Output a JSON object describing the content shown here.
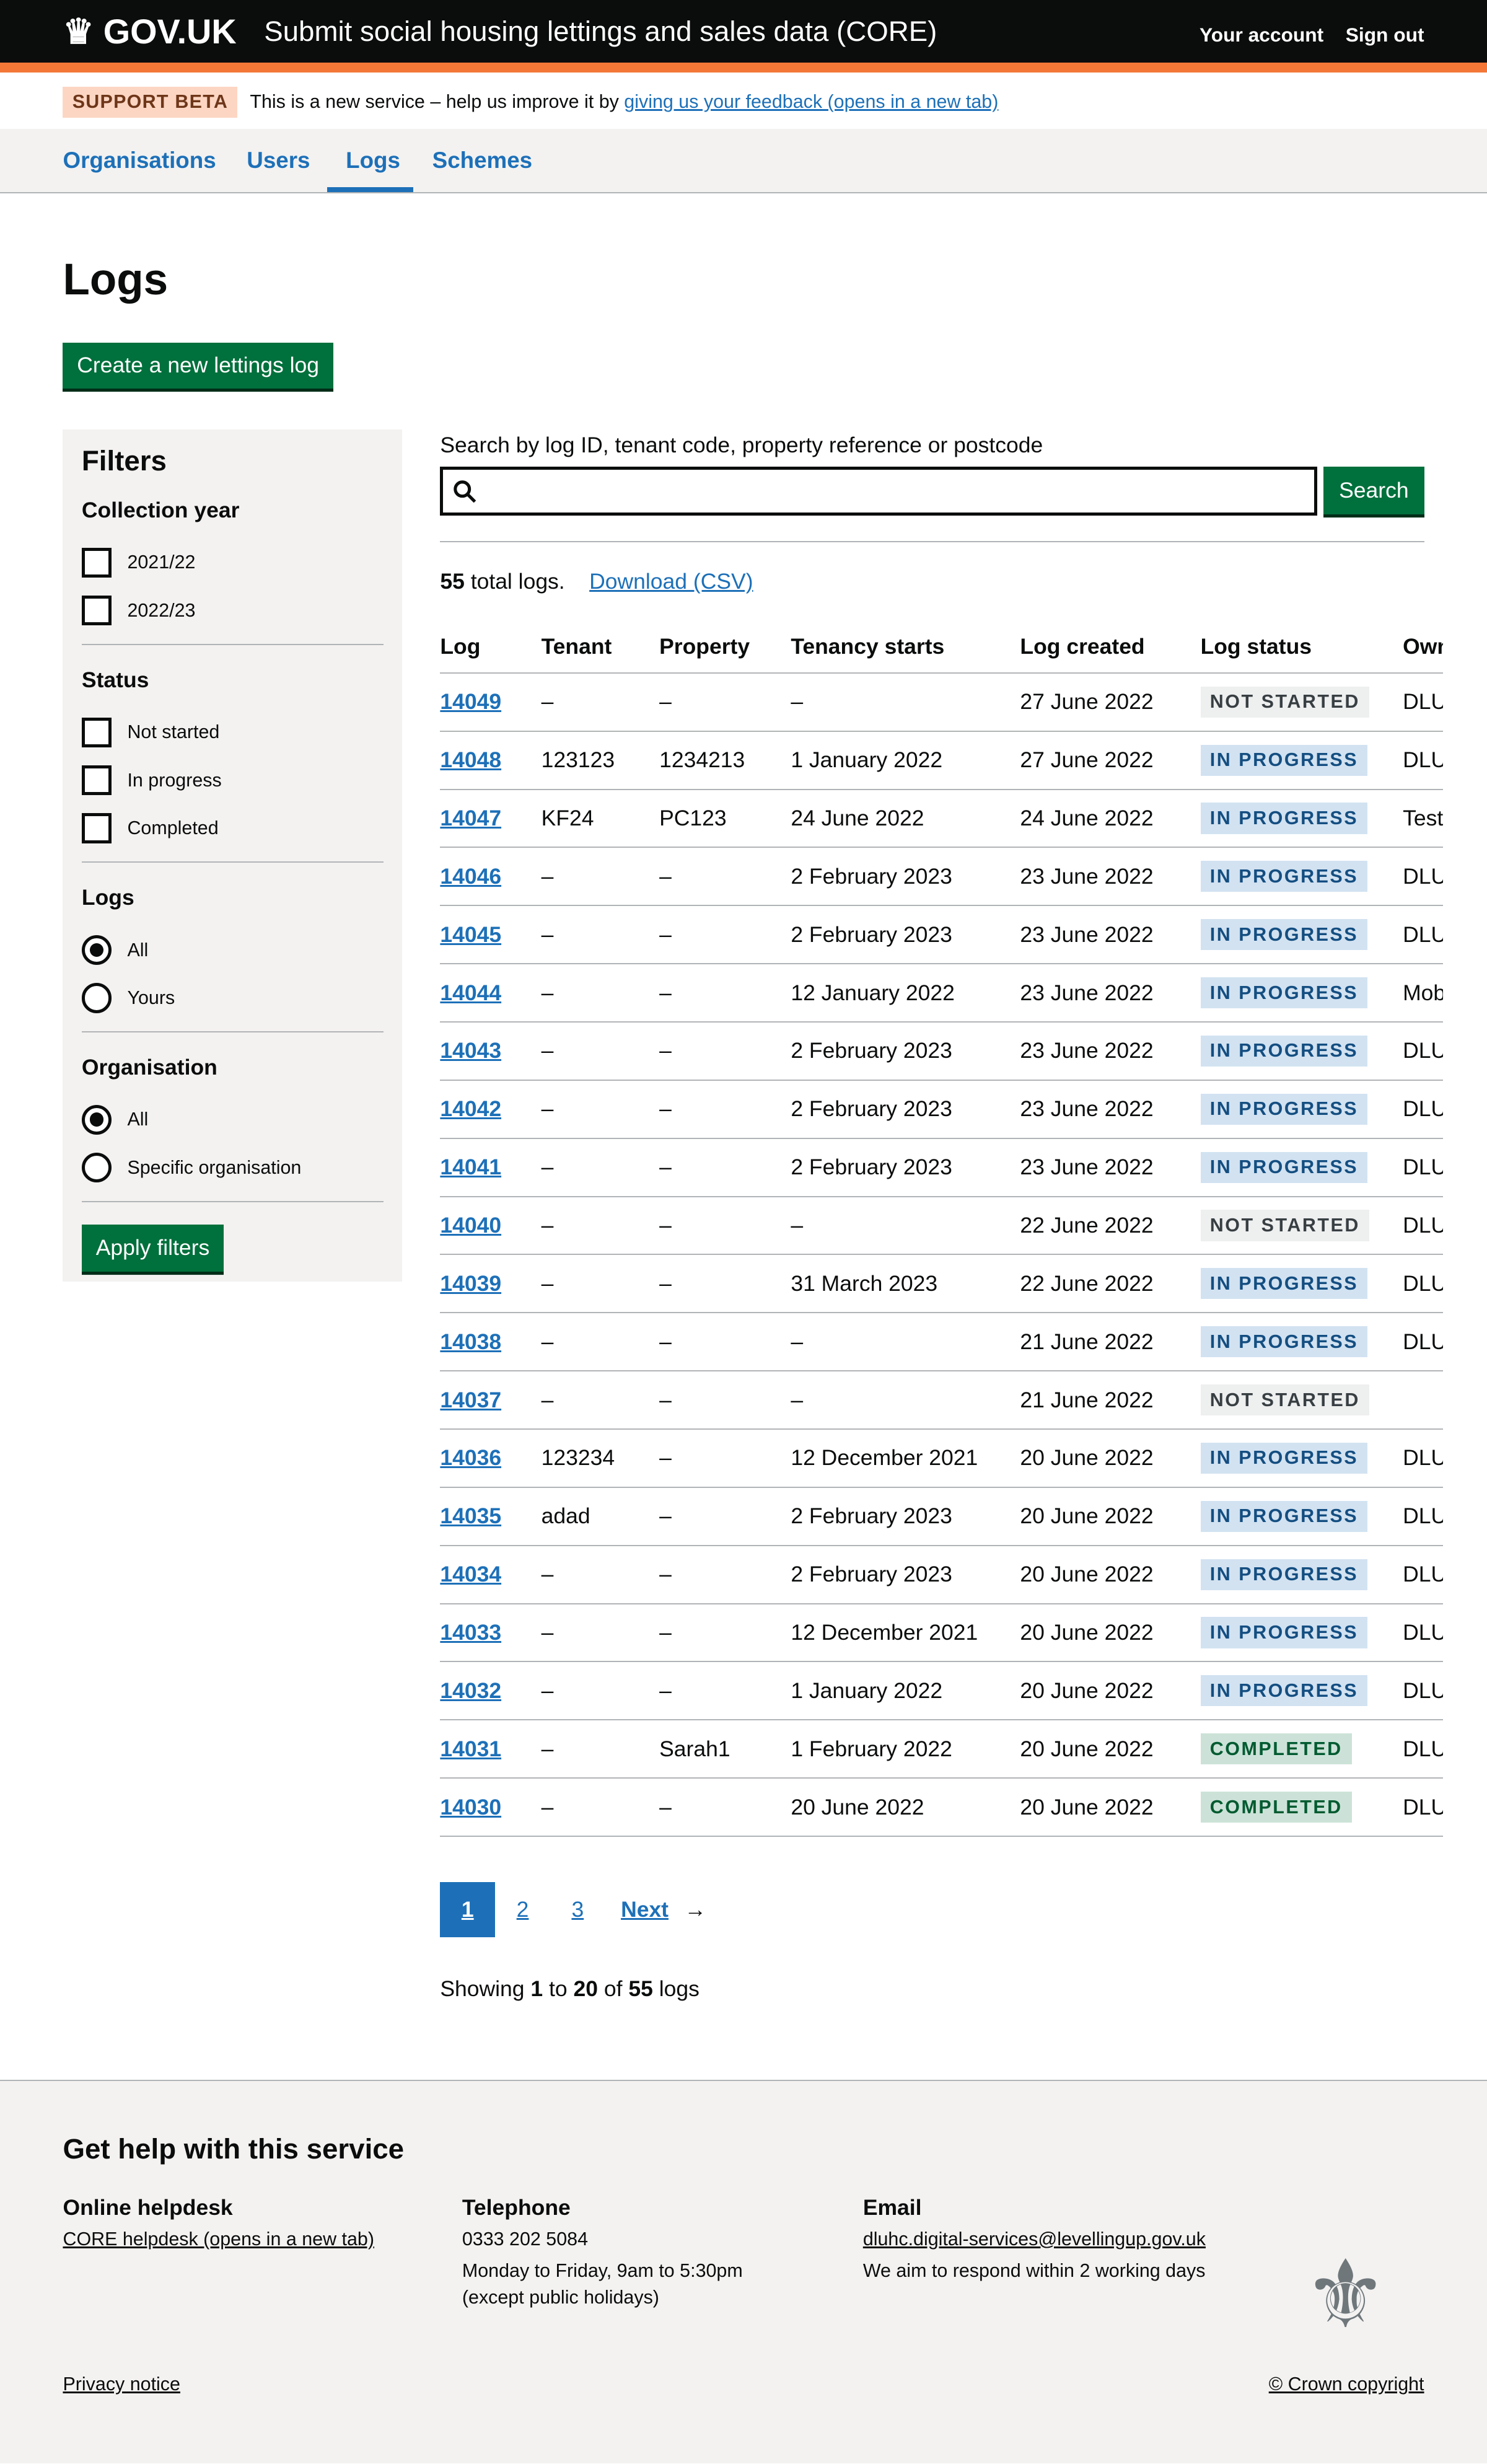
{
  "header": {
    "logo": "GOV.UK",
    "service": "Submit social housing lettings and sales data (CORE)",
    "links": [
      "Your account",
      "Sign out"
    ]
  },
  "phase": {
    "tag": "SUPPORT BETA",
    "text": "This is a new service – help us improve it by ",
    "link": "giving us your feedback (opens in a new tab)"
  },
  "nav": [
    "Organisations",
    "Users",
    "Logs",
    "Schemes"
  ],
  "nav_active": "Logs",
  "title": "Logs",
  "create_button": "Create a new lettings log",
  "filters": {
    "title": "Filters",
    "collection_year": {
      "label": "Collection year",
      "options": [
        "2021/22",
        "2022/23"
      ]
    },
    "status": {
      "label": "Status",
      "options": [
        "Not started",
        "In progress",
        "Completed"
      ]
    },
    "logs": {
      "label": "Logs",
      "options": [
        "All",
        "Yours"
      ],
      "selected": "All"
    },
    "organisation": {
      "label": "Organisation",
      "options": [
        "All",
        "Specific organisation"
      ],
      "selected": "All"
    },
    "apply": "Apply filters"
  },
  "search": {
    "label": "Search by log ID, tenant code, property reference or postcode",
    "value": "",
    "button": "Search"
  },
  "summary": {
    "count": "55",
    "text": " total logs.",
    "download": "Download (CSV)"
  },
  "table": {
    "headers": [
      "Log",
      "Tenant",
      "Property",
      "Tenancy starts",
      "Log created",
      "Log status",
      "Owning or"
    ],
    "rows": [
      [
        "14049",
        "–",
        "–",
        "–",
        "27 June 2022",
        "NOT STARTED",
        "DLUHC"
      ],
      [
        "14048",
        "123123",
        "1234213",
        "1 January 2022",
        "27 June 2022",
        "IN PROGRESS",
        "DLUHC"
      ],
      [
        "14047",
        "KF24",
        "PC123",
        "24 June 2022",
        "24 June 2022",
        "IN PROGRESS",
        "Test Organ"
      ],
      [
        "14046",
        "–",
        "–",
        "2 February 2023",
        "23 June 2022",
        "IN PROGRESS",
        "DLUHC Tes"
      ],
      [
        "14045",
        "–",
        "–",
        "2 February 2023",
        "23 June 2022",
        "IN PROGRESS",
        "DLUHC Tes"
      ],
      [
        "14044",
        "–",
        "–",
        "12 January 2022",
        "23 June 2022",
        "IN PROGRESS",
        "Mobile Hou"
      ],
      [
        "14043",
        "–",
        "–",
        "2 February 2023",
        "23 June 2022",
        "IN PROGRESS",
        "DLUHC Tes"
      ],
      [
        "14042",
        "–",
        "–",
        "2 February 2023",
        "23 June 2022",
        "IN PROGRESS",
        "DLUHC Tes"
      ],
      [
        "14041",
        "–",
        "–",
        "2 February 2023",
        "23 June 2022",
        "IN PROGRESS",
        "DLUHC"
      ],
      [
        "14040",
        "–",
        "–",
        "–",
        "22 June 2022",
        "NOT STARTED",
        "DLUHC"
      ],
      [
        "14039",
        "–",
        "–",
        "31 March 2023",
        "22 June 2022",
        "IN PROGRESS",
        "DLUHC Tes"
      ],
      [
        "14038",
        "–",
        "–",
        "–",
        "21 June 2022",
        "IN PROGRESS",
        "DLUHC"
      ],
      [
        "14037",
        "–",
        "–",
        "–",
        "21 June 2022",
        "NOT STARTED",
        ""
      ],
      [
        "14036",
        "123234",
        "–",
        "12 December 2021",
        "20 June 2022",
        "IN PROGRESS",
        "DLUHC Tes"
      ],
      [
        "14035",
        "adad",
        "–",
        "2 February 2023",
        "20 June 2022",
        "IN PROGRESS",
        "DLUHC Tes"
      ],
      [
        "14034",
        "–",
        "–",
        "2 February 2023",
        "20 June 2022",
        "IN PROGRESS",
        "DLUHC Tes"
      ],
      [
        "14033",
        "–",
        "–",
        "12 December 2021",
        "20 June 2022",
        "IN PROGRESS",
        "DLUHC Tes"
      ],
      [
        "14032",
        "–",
        "–",
        "1 January 2022",
        "20 June 2022",
        "IN PROGRESS",
        "DLUHC Tes"
      ],
      [
        "14031",
        "–",
        "Sarah1",
        "1 February 2022",
        "20 June 2022",
        "COMPLETED",
        "DLUHC Tes"
      ],
      [
        "14030",
        "–",
        "–",
        "20 June 2022",
        "20 June 2022",
        "COMPLETED",
        "DLUHC Tes"
      ]
    ]
  },
  "pagination": {
    "pages": [
      "1",
      "2",
      "3"
    ],
    "current": "1",
    "next": "Next"
  },
  "showing": {
    "prefix": "Showing ",
    "from": "1",
    "to_word": " to ",
    "to": "20",
    "of_word": " of ",
    "total": "55",
    "suffix": " logs"
  },
  "footer": {
    "title": "Get help with this service",
    "helpdesk": {
      "title": "Online helpdesk",
      "link": "CORE helpdesk (opens in a new tab)"
    },
    "telephone": {
      "title": "Telephone",
      "number": "0333 202 5084",
      "hours": "Monday to Friday, 9am to 5:30pm",
      "note": "(except public holidays)"
    },
    "email": {
      "title": "Email",
      "address": "dluhc.digital-services@levellingup.gov.uk",
      "note": "We aim to respond within 2 working days"
    },
    "privacy": "Privacy notice",
    "copyright": "© Crown copyright"
  },
  "colors": {
    "header": "#0b0c0c",
    "accent": "#f47738",
    "link": "#1d70b8",
    "button": "#00703c"
  }
}
